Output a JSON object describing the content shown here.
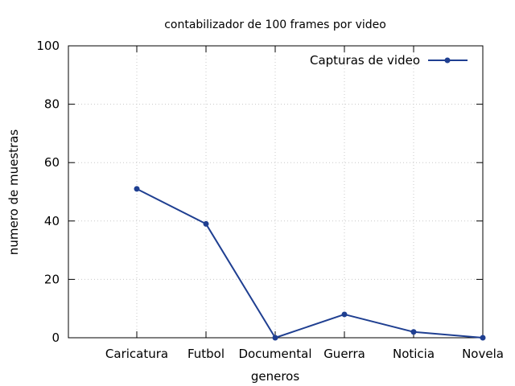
{
  "chart_data": {
    "type": "line",
    "title": "contabilizador de 100 frames por video",
    "xlabel": "generos",
    "ylabel": "numero de muestras",
    "categories": [
      "Caricatura",
      "Futbol",
      "Documental",
      "Guerra",
      "Noticia",
      "Novela"
    ],
    "series": [
      {
        "name": "Capturas de video",
        "values": [
          51,
          39,
          0,
          8,
          2,
          0
        ],
        "color": "#1f3f91"
      }
    ],
    "ylim": [
      0,
      100
    ],
    "yticks": [
      "0",
      "20",
      "40",
      "60",
      "80",
      "100"
    ],
    "grid": true,
    "legend_position": "top-right"
  }
}
